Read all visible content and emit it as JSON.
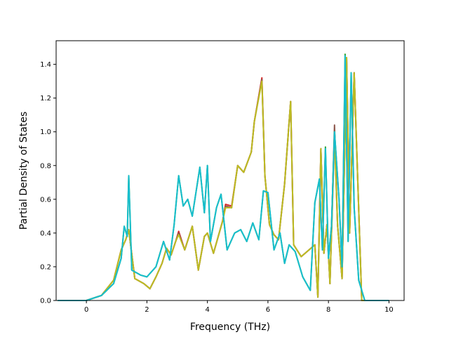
{
  "chart_data": {
    "type": "line",
    "title": "",
    "xlabel": "Frequency (THz)",
    "ylabel": "Partial Density of States",
    "xlim": [
      -1.0,
      10.5
    ],
    "ylim": [
      0.0,
      1.54
    ],
    "xticks": [
      0,
      2,
      4,
      6,
      8,
      10
    ],
    "yticks": [
      0.0,
      0.2,
      0.4,
      0.6,
      0.8,
      1.0,
      1.2,
      1.4
    ],
    "xtick_labels": [
      "0",
      "2",
      "4",
      "6",
      "8",
      "10"
    ],
    "ytick_labels": [
      "0.0",
      "0.2",
      "0.4",
      "0.6",
      "0.8",
      "1.0",
      "1.2",
      "1.4"
    ],
    "grid": false,
    "legend": "none",
    "series": [
      {
        "color": "#d62728",
        "x": [
          -0.95,
          0.0,
          0.5,
          0.9,
          1.15,
          1.3,
          1.4,
          1.6,
          1.9,
          2.1,
          2.3,
          2.5,
          2.65,
          2.8,
          2.95,
          3.05,
          3.25,
          3.5,
          3.7,
          3.9,
          4.0,
          4.2,
          4.5,
          4.6,
          4.8,
          5.0,
          5.2,
          5.45,
          5.55,
          5.8,
          5.9,
          6.05,
          6.2,
          6.35,
          6.55,
          6.75,
          6.85,
          7.1,
          7.55,
          7.65,
          7.75,
          7.85,
          7.95,
          8.05,
          8.2,
          8.3,
          8.45,
          8.6,
          8.7,
          8.85,
          9.1,
          10.0
        ],
        "values": [
          0.0,
          0.0,
          0.03,
          0.12,
          0.3,
          0.36,
          0.42,
          0.13,
          0.1,
          0.07,
          0.14,
          0.22,
          0.31,
          0.27,
          0.35,
          0.41,
          0.3,
          0.44,
          0.18,
          0.38,
          0.4,
          0.28,
          0.47,
          0.57,
          0.56,
          0.8,
          0.76,
          0.88,
          1.06,
          1.32,
          0.74,
          0.45,
          0.39,
          0.36,
          0.69,
          1.18,
          0.33,
          0.26,
          0.33,
          0.02,
          0.9,
          0.28,
          0.45,
          0.1,
          0.98,
          0.45,
          0.13,
          1.43,
          0.4,
          1.35,
          0.0,
          0.0
        ]
      },
      {
        "color": "#8c564b",
        "x": [
          -0.95,
          0.0,
          0.5,
          0.9,
          1.15,
          1.3,
          1.4,
          1.6,
          1.9,
          2.1,
          2.3,
          2.5,
          2.65,
          2.8,
          2.95,
          3.05,
          3.25,
          3.5,
          3.7,
          3.9,
          4.0,
          4.2,
          4.5,
          4.6,
          4.8,
          5.0,
          5.2,
          5.45,
          5.55,
          5.8,
          5.9,
          6.05,
          6.2,
          6.35,
          6.55,
          6.75,
          6.85,
          7.1,
          7.55,
          7.65,
          7.75,
          7.85,
          7.95,
          8.05,
          8.2,
          8.3,
          8.45,
          8.6,
          8.7,
          8.85,
          9.1,
          10.0
        ],
        "values": [
          0.0,
          0.0,
          0.03,
          0.12,
          0.3,
          0.36,
          0.42,
          0.13,
          0.1,
          0.07,
          0.14,
          0.22,
          0.31,
          0.27,
          0.35,
          0.4,
          0.3,
          0.44,
          0.18,
          0.38,
          0.4,
          0.28,
          0.47,
          0.56,
          0.55,
          0.8,
          0.76,
          0.88,
          1.06,
          1.31,
          0.74,
          0.45,
          0.39,
          0.36,
          0.69,
          1.18,
          0.33,
          0.26,
          0.33,
          0.02,
          0.9,
          0.28,
          0.45,
          0.1,
          1.04,
          0.45,
          0.13,
          1.44,
          0.4,
          1.35,
          0.0,
          0.0
        ]
      },
      {
        "color": "#bcbd22",
        "x": [
          -0.95,
          0.0,
          0.5,
          0.9,
          1.15,
          1.3,
          1.4,
          1.6,
          1.9,
          2.1,
          2.3,
          2.5,
          2.65,
          2.8,
          2.95,
          3.05,
          3.25,
          3.5,
          3.7,
          3.9,
          4.0,
          4.2,
          4.5,
          4.6,
          4.8,
          5.0,
          5.2,
          5.45,
          5.55,
          5.8,
          5.9,
          6.05,
          6.2,
          6.35,
          6.55,
          6.75,
          6.85,
          7.1,
          7.55,
          7.65,
          7.75,
          7.85,
          7.95,
          8.05,
          8.2,
          8.3,
          8.45,
          8.6,
          8.7,
          8.85,
          9.1,
          10.0
        ],
        "values": [
          0.0,
          0.0,
          0.03,
          0.12,
          0.3,
          0.36,
          0.42,
          0.13,
          0.1,
          0.07,
          0.14,
          0.22,
          0.31,
          0.27,
          0.35,
          0.39,
          0.3,
          0.44,
          0.18,
          0.38,
          0.4,
          0.28,
          0.47,
          0.55,
          0.55,
          0.8,
          0.76,
          0.88,
          1.06,
          1.3,
          0.74,
          0.45,
          0.39,
          0.36,
          0.69,
          1.18,
          0.33,
          0.26,
          0.33,
          0.02,
          0.9,
          0.28,
          0.45,
          0.1,
          0.97,
          0.45,
          0.13,
          1.44,
          0.4,
          1.35,
          0.0,
          0.0
        ]
      },
      {
        "color": "#2ca02c",
        "x": [
          -0.95,
          0.0,
          0.5,
          0.9,
          1.15,
          1.25,
          1.35,
          1.4,
          1.5,
          1.8,
          2.0,
          2.3,
          2.55,
          2.75,
          2.9,
          3.05,
          3.2,
          3.35,
          3.5,
          3.75,
          3.9,
          4.0,
          4.1,
          4.3,
          4.45,
          4.65,
          4.9,
          5.1,
          5.3,
          5.5,
          5.7,
          5.85,
          6.0,
          6.2,
          6.4,
          6.55,
          6.7,
          6.9,
          7.15,
          7.4,
          7.55,
          7.7,
          7.8,
          7.9,
          8.0,
          8.1,
          8.2,
          8.35,
          8.45,
          8.55,
          8.65,
          8.75,
          8.85,
          9.0,
          9.2,
          10.0
        ],
        "values": [
          0.0,
          0.0,
          0.03,
          0.1,
          0.25,
          0.44,
          0.38,
          0.74,
          0.18,
          0.15,
          0.14,
          0.2,
          0.35,
          0.24,
          0.45,
          0.74,
          0.56,
          0.6,
          0.5,
          0.79,
          0.52,
          0.8,
          0.35,
          0.55,
          0.63,
          0.3,
          0.4,
          0.42,
          0.35,
          0.46,
          0.36,
          0.65,
          0.64,
          0.3,
          0.4,
          0.22,
          0.33,
          0.29,
          0.14,
          0.06,
          0.58,
          0.72,
          0.3,
          0.91,
          0.25,
          0.44,
          1.0,
          0.6,
          0.2,
          1.46,
          0.35,
          1.35,
          0.55,
          0.12,
          0.0,
          0.0
        ]
      },
      {
        "color": "#17becf",
        "x": [
          -0.95,
          0.0,
          0.5,
          0.9,
          1.15,
          1.25,
          1.35,
          1.4,
          1.5,
          1.8,
          2.0,
          2.3,
          2.55,
          2.75,
          2.9,
          3.05,
          3.2,
          3.35,
          3.5,
          3.75,
          3.9,
          4.0,
          4.1,
          4.3,
          4.45,
          4.65,
          4.9,
          5.1,
          5.3,
          5.5,
          5.7,
          5.85,
          6.0,
          6.2,
          6.4,
          6.55,
          6.7,
          6.9,
          7.15,
          7.4,
          7.55,
          7.7,
          7.8,
          7.9,
          8.0,
          8.1,
          8.2,
          8.35,
          8.45,
          8.55,
          8.65,
          8.75,
          8.85,
          9.0,
          9.2,
          10.0
        ],
        "values": [
          0.0,
          0.0,
          0.03,
          0.1,
          0.25,
          0.44,
          0.38,
          0.74,
          0.18,
          0.15,
          0.14,
          0.2,
          0.35,
          0.24,
          0.45,
          0.74,
          0.56,
          0.6,
          0.5,
          0.79,
          0.52,
          0.8,
          0.35,
          0.55,
          0.63,
          0.3,
          0.4,
          0.42,
          0.35,
          0.46,
          0.36,
          0.65,
          0.64,
          0.3,
          0.4,
          0.22,
          0.33,
          0.29,
          0.14,
          0.06,
          0.58,
          0.72,
          0.3,
          0.9,
          0.25,
          0.44,
          1.0,
          0.6,
          0.2,
          1.45,
          0.35,
          1.35,
          0.55,
          0.12,
          0.0,
          0.0
        ]
      }
    ]
  }
}
